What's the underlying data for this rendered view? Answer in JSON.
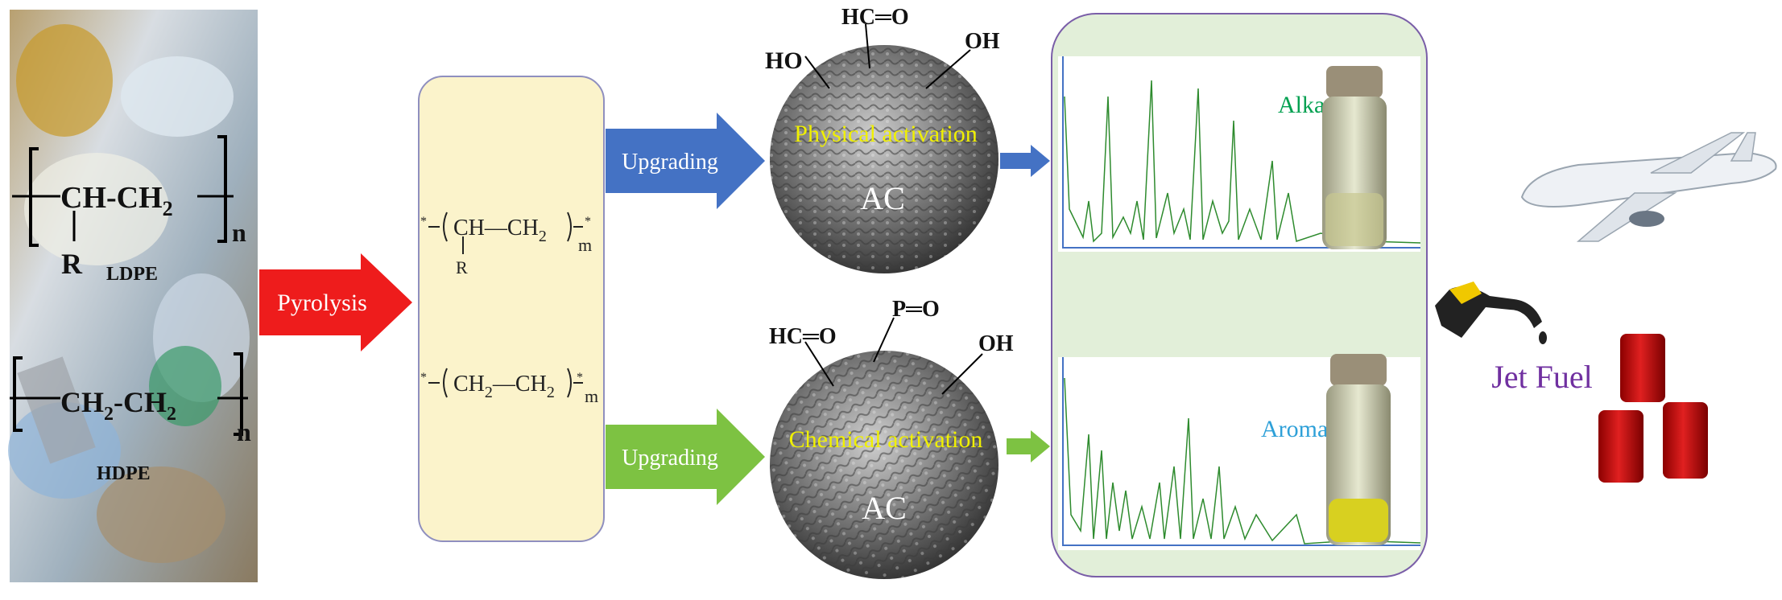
{
  "feedstock": {
    "ldpe": {
      "main": "CH-CH",
      "sub": "2",
      "substituent": "R",
      "repeat": "n",
      "label": "LDPE"
    },
    "hdpe": {
      "first": "CH",
      "sub1": "2",
      "second": "-CH",
      "sub2": "2",
      "repeat": "n",
      "label": "HDPE"
    }
  },
  "arrows": {
    "pyrolysis": "Pyrolysis",
    "upgrading_top": "Upgrading",
    "upgrading_bottom": "Upgrading"
  },
  "intermediates": {
    "top": {
      "unit": "CH",
      "bond": "—CH",
      "sub": "2",
      "substituent": "R",
      "repeat": "m"
    },
    "bottom": {
      "unit": "CH",
      "sub1": "2",
      "bond": "—CH",
      "sub2": "2",
      "repeat": "m"
    }
  },
  "catalysts": [
    {
      "label": "Physical activation",
      "core": "AC",
      "groups": [
        "HO",
        "HC═O",
        "OH"
      ]
    },
    {
      "label": "Chemical activation",
      "core": "AC",
      "groups": [
        "HC═O",
        "P═O",
        "OH"
      ]
    }
  ],
  "products": [
    {
      "label": "Alkanes"
    },
    {
      "label": "Aromatics"
    }
  ],
  "output": {
    "label": "Jet Fuel"
  }
}
